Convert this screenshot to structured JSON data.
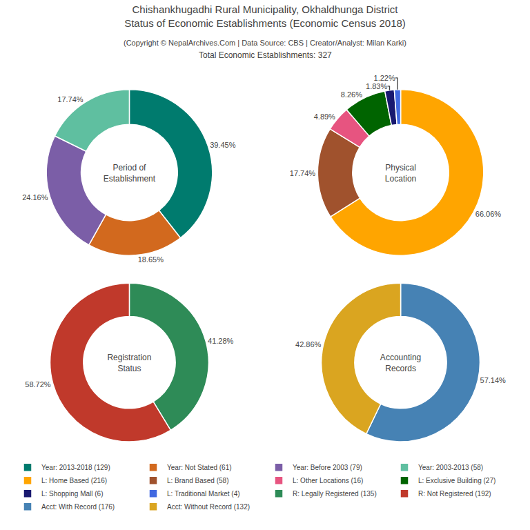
{
  "title": "Chishankhugadhi Rural Municipality, Okhaldhunga District\nStatus of Economic Establishments (Economic Census 2018)",
  "subtitle": "(Copyright © NepalArchives.Com | Data Source: CBS | Creator/Analyst: Milan Karki)",
  "annotations": [
    "Total Economic Establishments: 327"
  ],
  "legend": "bottom",
  "chart_data": [
    {
      "type": "pie",
      "title": "Period of\nEstablishment",
      "categories": [
        "Year: 2013-2018 (129)",
        "Year: Not Stated (61)",
        "Year: Before 2003 (79)",
        "Year: 2003-2013 (58)"
      ],
      "values": [
        39.45,
        18.65,
        24.16,
        17.74
      ],
      "value_labels": [
        "39.45%",
        "18.65%",
        "24.16%",
        "17.74%"
      ],
      "colors": [
        "#007B6E",
        "#D2691E",
        "#7B5EA7",
        "#5FBFA0"
      ],
      "data_labels": true
    },
    {
      "type": "pie",
      "title": "Physical\nLocation",
      "categories": [
        "L: Home Based (216)",
        "L: Brand Based (58)",
        "L: Other Locations (16)",
        "L: Exclusive Building (27)",
        "L: Shopping Mall (6)",
        "L: Traditional Market (4)"
      ],
      "values": [
        66.06,
        17.74,
        4.89,
        8.26,
        1.83,
        1.22
      ],
      "value_labels": [
        "66.06%",
        "17.74%",
        "4.89%",
        "8.26%",
        "1.83%",
        "1.22%"
      ],
      "colors": [
        "#FFA500",
        "#A0522D",
        "#E75480",
        "#006400",
        "#191970",
        "#4169E1"
      ],
      "data_labels": true
    },
    {
      "type": "pie",
      "title": "Registration\nStatus",
      "categories": [
        "R: Legally Registered (135)",
        "R: Not Registered (192)"
      ],
      "values": [
        41.28,
        58.72
      ],
      "value_labels": [
        "41.28%",
        "58.72%"
      ],
      "colors": [
        "#2E8B57",
        "#C0392B"
      ],
      "data_labels": true
    },
    {
      "type": "pie",
      "title": "Accounting\nRecords",
      "categories": [
        "Acct: With Record (176)",
        "Acct: Without Record (132)"
      ],
      "values": [
        57.14,
        42.86
      ],
      "value_labels": [
        "57.14%",
        "42.86%"
      ],
      "colors": [
        "#4682B4",
        "#DAA520"
      ],
      "data_labels": true
    }
  ]
}
